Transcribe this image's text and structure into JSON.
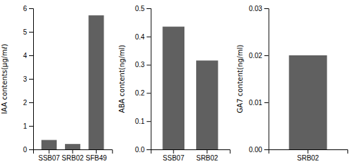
{
  "chart_data": [
    {
      "type": "bar",
      "categories": [
        "SSB07",
        "SRB02",
        "SFB49"
      ],
      "values": [
        0.4,
        0.23,
        5.7
      ],
      "color": "#606060",
      "ylabel": "IAA contents(μg/mℓ)",
      "ylim": [
        0,
        6
      ],
      "yticks": [
        0,
        1,
        2,
        3,
        4,
        5,
        6
      ]
    },
    {
      "type": "bar",
      "categories": [
        "SSB07",
        "SRB02"
      ],
      "values": [
        0.435,
        0.315
      ],
      "color": "#606060",
      "ylabel": "ABA content(ng/ml)",
      "ylim": [
        0.0,
        0.5
      ],
      "yticks": [
        {
          "value": 0,
          "label": "0.0"
        },
        0.1,
        0.2,
        0.3,
        0.4,
        0.5
      ]
    },
    {
      "type": "bar",
      "categories": [
        "SRB02"
      ],
      "values": [
        0.02
      ],
      "color": "#606060",
      "ylabel": "GA7 content(ng/ml)",
      "ylim": [
        0,
        0.03
      ],
      "yticks": [
        {
          "value": 0,
          "label": "0.00"
        },
        0.01,
        0.02,
        0.03
      ]
    }
  ]
}
